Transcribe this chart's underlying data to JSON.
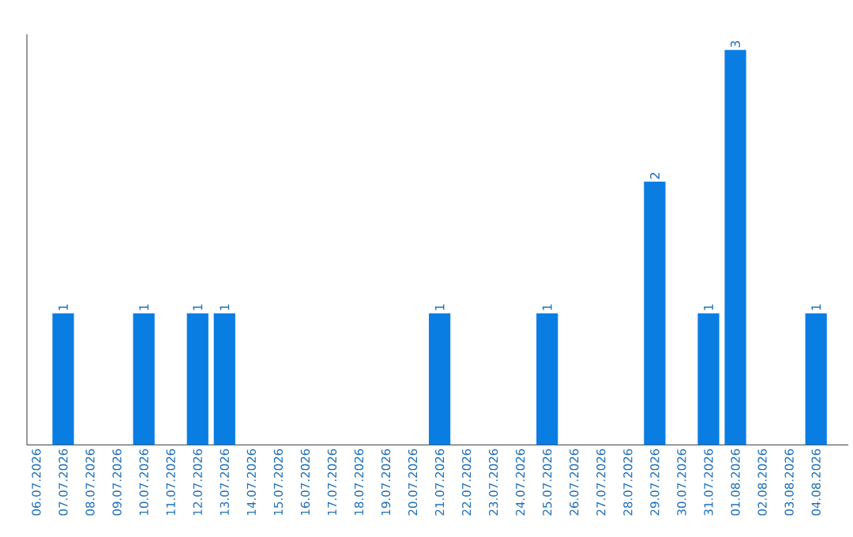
{
  "chart_data": {
    "type": "bar",
    "categories": [
      "06.07.2026",
      "07.07.2026",
      "08.07.2026",
      "09.07.2026",
      "10.07.2026",
      "11.07.2026",
      "12.07.2026",
      "13.07.2026",
      "14.07.2026",
      "15.07.2026",
      "16.07.2026",
      "17.07.2026",
      "18.07.2026",
      "19.07.2026",
      "20.07.2026",
      "21.07.2026",
      "22.07.2026",
      "23.07.2026",
      "24.07.2026",
      "25.07.2026",
      "26.07.2026",
      "27.07.2026",
      "28.07.2026",
      "29.07.2026",
      "30.07.2026",
      "31.07.2026",
      "01.08.2026",
      "02.08.2026",
      "03.08.2026",
      "04.08.2026"
    ],
    "values": [
      0,
      1,
      0,
      0,
      1,
      0,
      1,
      1,
      0,
      0,
      0,
      0,
      0,
      0,
      0,
      1,
      0,
      0,
      0,
      1,
      0,
      0,
      0,
      2,
      0,
      1,
      3,
      0,
      0,
      1
    ],
    "value_labels": [
      null,
      "1",
      null,
      null,
      "1",
      null,
      "1",
      "1",
      null,
      null,
      null,
      null,
      null,
      null,
      null,
      "1",
      null,
      null,
      null,
      "1",
      null,
      null,
      null,
      "2",
      null,
      "1",
      "3",
      null,
      null,
      "1"
    ],
    "color": "#0a7de3",
    "grid": false,
    "tick_labels": "x"
  }
}
